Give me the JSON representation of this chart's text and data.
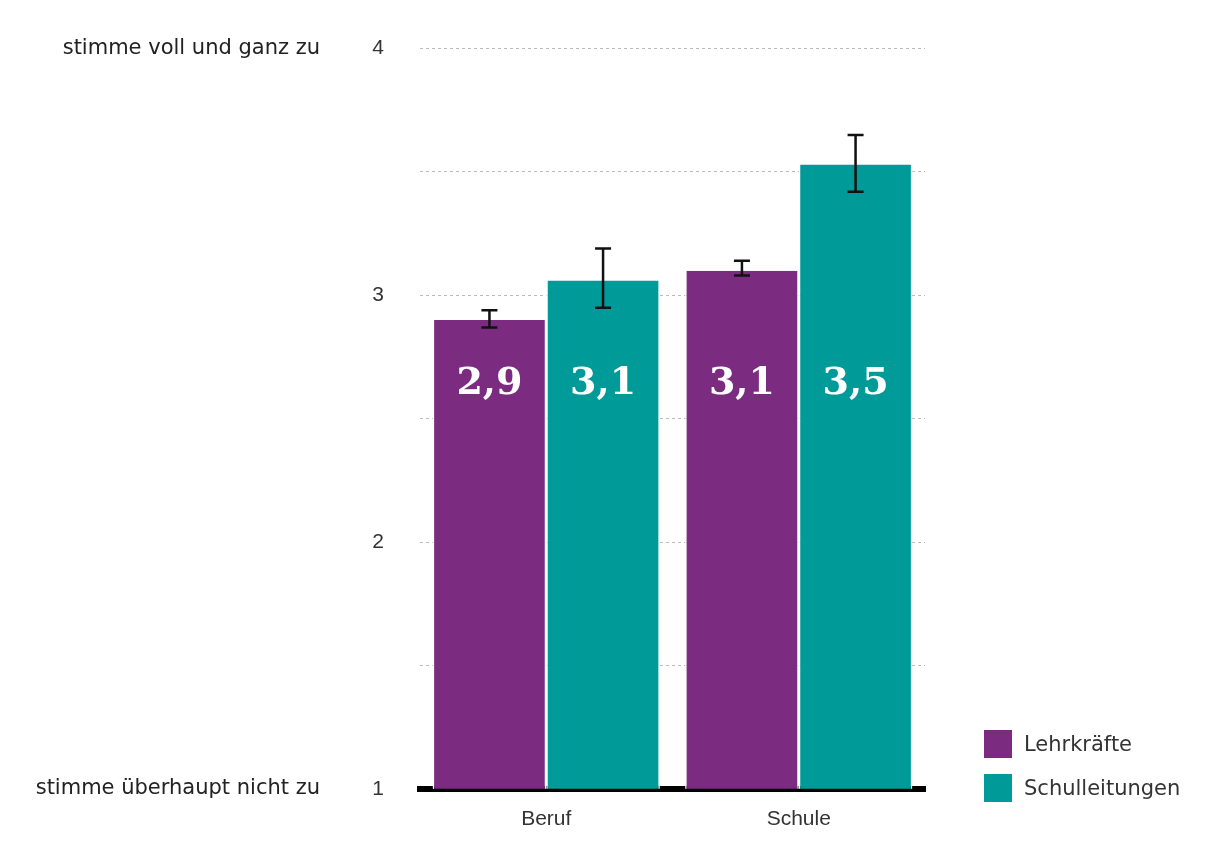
{
  "chart_data": {
    "type": "bar",
    "categories": [
      "Beruf",
      "Schule"
    ],
    "series": [
      {
        "name": "Lehrkräfte",
        "color": "#7b2c80",
        "values": [
          2.9,
          3.1
        ],
        "errors": [
          [
            2.87,
            2.94
          ],
          [
            3.08,
            3.14
          ]
        ],
        "value_labels": [
          "2,9",
          "3,1"
        ]
      },
      {
        "name": "Schulleitungen",
        "color": "#009b98",
        "values": [
          3.06,
          3.53
        ],
        "errors": [
          [
            2.95,
            3.19
          ],
          [
            3.42,
            3.65
          ]
        ],
        "value_labels": [
          "3,1",
          "3,5"
        ]
      }
    ],
    "ylim": [
      1,
      4
    ],
    "yticks": [
      1,
      {
        "value": 1.5,
        "label": null
      },
      2,
      {
        "value": 2.5,
        "label": null
      },
      3,
      {
        "value": 3.5,
        "label": null
      },
      4
    ],
    "grid": "y",
    "legend": "bottom right",
    "annotations": [
      "stimme voll und ganz zu",
      "stimme überhaupt nicht zu"
    ]
  }
}
